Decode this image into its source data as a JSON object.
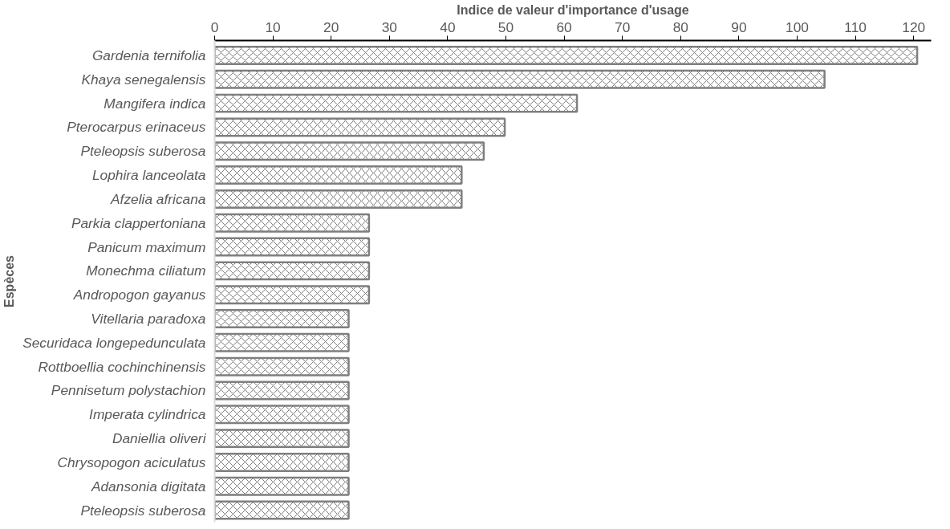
{
  "chart_data": {
    "type": "bar",
    "orientation": "horizontal",
    "xlabel": "Indice de valeur d'importance d'usage",
    "ylabel": "Espèces",
    "categories": [
      "Gardenia ternifolia",
      "Khaya senegalensis",
      "Mangifera indica",
      "Pterocarpus erinaceus",
      "Pteleopsis suberosa",
      "Lophira lanceolata",
      "Afzelia africana",
      "Parkia clappertoniana",
      "Panicum maximum",
      "Monechma ciliatum",
      "Andropogon gayanus",
      "Vitellaria paradoxa",
      "Securidaca longepedunculata",
      "Rottboellia cochinchinensis",
      "Pennisetum polystachion",
      "Imperata cylindrica",
      "Daniellia oliveri",
      "Chrysopogon aciculatus",
      "Adansonia digitata",
      "Pteleopsis suberosa"
    ],
    "values": [
      120.6,
      104.7,
      62.2,
      49.8,
      46.2,
      42.4,
      42.4,
      26.5,
      26.5,
      26.5,
      26.5,
      23.0,
      23.0,
      23.0,
      23.0,
      23.0,
      23.0,
      23.0,
      23.0,
      23.0
    ],
    "color": "#7f7f7f",
    "xlim": [
      0,
      123
    ],
    "xticks": [
      0,
      10,
      20,
      30,
      40,
      50,
      60,
      70,
      80,
      90,
      100,
      110,
      120
    ],
    "grid": false
  }
}
